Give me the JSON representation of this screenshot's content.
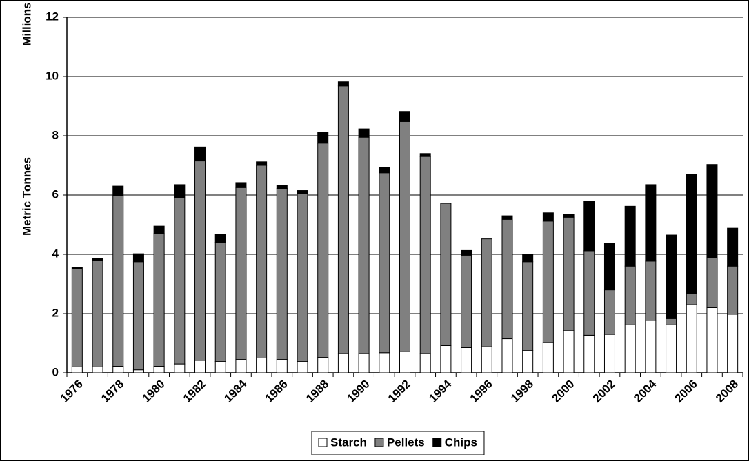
{
  "chart_data": {
    "type": "stacked_bar",
    "y_label_top": "Millions",
    "y_label": "Metric Tonnes",
    "categories": [
      "1976",
      null,
      "1978",
      null,
      "1980",
      null,
      "1982",
      null,
      "1984",
      null,
      "1986",
      null,
      "1988",
      null,
      "1990",
      null,
      "1992",
      null,
      "1994",
      null,
      "1996",
      null,
      "1998",
      null,
      "2000",
      null,
      "2002",
      null,
      "2004",
      null,
      "2006",
      null,
      "2008"
    ],
    "series": [
      {
        "name": "Starch",
        "color": "#ffffff",
        "values": [
          0.2,
          0.2,
          0.22,
          0.1,
          0.22,
          0.3,
          0.42,
          0.38,
          0.45,
          0.5,
          0.45,
          0.38,
          0.52,
          0.65,
          0.65,
          0.68,
          0.72,
          0.65,
          0.92,
          0.85,
          0.88,
          1.15,
          0.75,
          1.02,
          1.42,
          1.27,
          1.3,
          1.62,
          1.77,
          1.62,
          2.3,
          2.2,
          1.98
        ]
      },
      {
        "name": "Pellets",
        "color": "#808080",
        "values": [
          3.3,
          3.58,
          5.75,
          3.65,
          4.48,
          5.6,
          6.73,
          4.02,
          5.8,
          6.5,
          5.77,
          5.67,
          7.23,
          9.03,
          7.3,
          6.07,
          7.76,
          6.65,
          4.8,
          3.12,
          3.64,
          4.03,
          3.0,
          4.1,
          3.83,
          2.85,
          1.5,
          1.98,
          2.0,
          0.21,
          0.37,
          1.68,
          1.62
        ]
      },
      {
        "name": "Chips",
        "color": "#000000",
        "values": [
          0.05,
          0.07,
          0.33,
          0.27,
          0.25,
          0.45,
          0.47,
          0.28,
          0.17,
          0.12,
          0.1,
          0.1,
          0.37,
          0.14,
          0.28,
          0.17,
          0.34,
          0.1,
          0,
          0.16,
          0,
          0.12,
          0.25,
          0.28,
          0.1,
          1.68,
          1.57,
          2.02,
          2.58,
          2.82,
          4.03,
          3.15,
          1.28
        ]
      }
    ],
    "ylim": [
      0,
      12
    ],
    "yticks": [
      0,
      2,
      4,
      6,
      8,
      10,
      12
    ],
    "grid": true,
    "legend": "bottom"
  }
}
